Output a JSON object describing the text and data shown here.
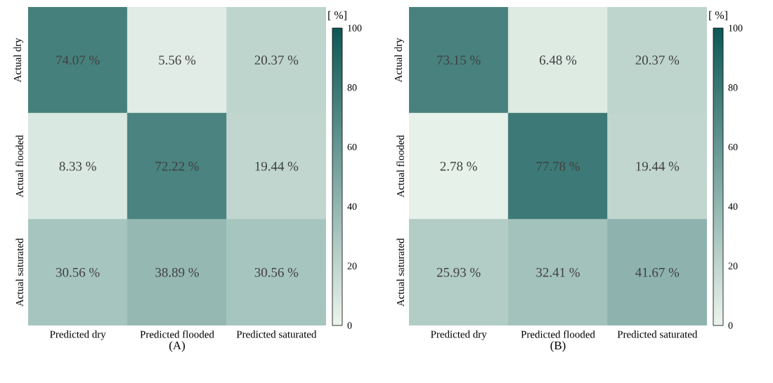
{
  "chart_data": [
    {
      "type": "heatmap",
      "xlabel": "(A)",
      "clabel": "[ %]",
      "categories": [
        "Predicted dry",
        "Predicted flooded",
        "Predicted saturated"
      ],
      "y_categories": [
        "Actual dry",
        "Actual flooded",
        "Actual saturated"
      ],
      "cells": [
        [
          74.07,
          5.56,
          20.37
        ],
        [
          8.33,
          72.22,
          19.44
        ],
        [
          30.56,
          38.89,
          30.56
        ]
      ],
      "cell_labels": [
        [
          "74.07 %",
          "5.56 %",
          "20.37 %"
        ],
        [
          "8.33 %",
          "72.22 %",
          "19.44 %"
        ],
        [
          "30.56 %",
          "38.89 %",
          "30.56 %"
        ]
      ],
      "clim": [
        0,
        100
      ],
      "cticks": [
        0,
        20,
        40,
        60,
        80,
        100
      ]
    },
    {
      "type": "heatmap",
      "xlabel": "(B)",
      "clabel": "[ %]",
      "categories": [
        "Predicted dry",
        "Predicted flooded",
        "Predicted saturated"
      ],
      "y_categories": [
        "Actual dry",
        "Actual flooded",
        "Actual saturated"
      ],
      "cells": [
        [
          73.15,
          6.48,
          20.37
        ],
        [
          2.78,
          77.78,
          19.44
        ],
        [
          25.93,
          32.41,
          41.67
        ]
      ],
      "cell_labels": [
        [
          "73.15 %",
          "6.48 %",
          "20.37 %"
        ],
        [
          "2.78 %",
          "77.78 %",
          "19.44 %"
        ],
        [
          "25.93 %",
          "32.41 %",
          "41.67 %"
        ]
      ],
      "clim": [
        0,
        100
      ],
      "cticks": [
        0,
        20,
        40,
        60,
        80,
        100
      ]
    }
  ]
}
